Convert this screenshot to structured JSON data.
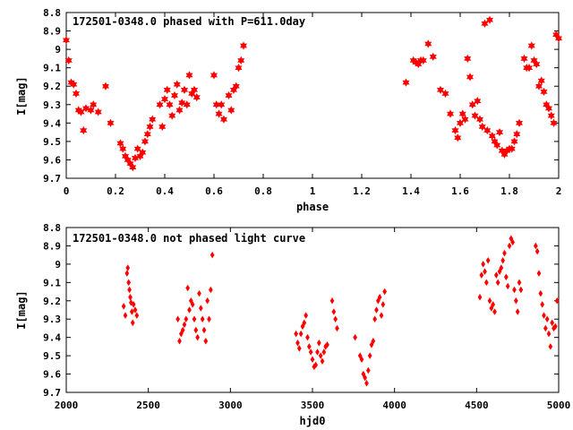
{
  "chart_data": [
    {
      "type": "scatter",
      "title": "172501-0348.0 phased with P=611.0day",
      "xlabel": "phase",
      "ylabel": "I[mag]",
      "xlim": [
        0,
        2
      ],
      "ylim": [
        9.7,
        8.8
      ],
      "y_inverted": true,
      "xticks": [
        "0",
        "0.2",
        "0.4",
        "0.6",
        "0.8",
        "1",
        "1.2",
        "1.4",
        "1.6",
        "1.8",
        "2"
      ],
      "yticks": [
        "8.8",
        "8.9",
        "9",
        "9.1",
        "9.2",
        "9.3",
        "9.4",
        "9.5",
        "9.6",
        "9.7"
      ],
      "marker": "star",
      "color": "#ff0000",
      "series": [
        {
          "x": [
            0.0,
            0.01,
            0.02,
            0.03,
            0.04,
            0.05,
            0.06,
            0.07,
            0.08,
            0.1,
            0.11,
            0.13,
            0.16,
            0.18,
            0.22,
            0.23,
            0.24,
            0.25,
            0.26,
            0.27,
            0.28,
            0.29,
            0.3,
            0.31,
            0.32,
            0.33,
            0.34,
            0.35,
            0.38,
            0.39,
            0.4,
            0.41,
            0.42,
            0.43,
            0.44,
            0.45,
            0.46,
            0.47,
            0.48,
            0.49,
            0.5,
            0.51,
            0.52,
            0.53,
            0.6,
            0.61,
            0.62,
            0.63,
            0.64,
            0.66,
            0.67,
            0.68,
            0.69,
            0.7,
            0.71,
            0.72,
            1.38,
            1.41,
            1.42,
            1.43,
            1.44,
            1.45,
            1.47,
            1.49,
            1.52,
            1.54,
            1.56,
            1.58,
            1.59,
            1.6,
            1.61,
            1.62,
            1.63,
            1.64,
            1.65,
            1.66,
            1.67,
            1.68,
            1.69,
            1.7,
            1.71,
            1.72,
            1.73,
            1.74,
            1.75,
            1.76,
            1.77,
            1.78,
            1.79,
            1.8,
            1.81,
            1.82,
            1.83,
            1.84,
            1.86,
            1.87,
            1.88,
            1.89,
            1.9,
            1.91,
            1.92,
            1.93,
            1.94,
            1.95,
            1.96,
            1.97,
            1.98,
            1.99,
            2.0
          ],
          "y": [
            8.95,
            9.06,
            9.18,
            9.19,
            9.24,
            9.33,
            9.34,
            9.44,
            9.32,
            9.33,
            9.3,
            9.34,
            9.2,
            9.4,
            9.51,
            9.54,
            9.58,
            9.6,
            9.62,
            9.64,
            9.59,
            9.54,
            9.58,
            9.56,
            9.5,
            9.46,
            9.42,
            9.38,
            9.3,
            9.42,
            9.27,
            9.22,
            9.3,
            9.36,
            9.25,
            9.19,
            9.33,
            9.29,
            9.22,
            9.3,
            9.14,
            9.24,
            9.22,
            9.26,
            9.14,
            9.3,
            9.35,
            9.3,
            9.38,
            9.25,
            9.33,
            9.22,
            9.2,
            9.1,
            9.06,
            8.98,
            9.18,
            9.06,
            9.07,
            9.08,
            9.06,
            9.06,
            8.97,
            9.04,
            9.22,
            9.24,
            9.35,
            9.44,
            9.48,
            9.4,
            9.35,
            9.38,
            9.05,
            9.15,
            9.3,
            9.36,
            9.28,
            9.38,
            9.42,
            8.86,
            9.44,
            8.84,
            9.47,
            9.5,
            9.52,
            9.45,
            9.55,
            9.57,
            9.55,
            9.54,
            9.54,
            9.5,
            9.46,
            9.4,
            9.05,
            9.1,
            9.1,
            8.98,
            9.06,
            9.08,
            9.2,
            9.17,
            9.23,
            9.3,
            9.32,
            9.36,
            9.4,
            8.92,
            8.94
          ]
        }
      ]
    },
    {
      "type": "scatter",
      "title": "172501-0348.0 not phased light curve",
      "xlabel": "hjd0",
      "ylabel": "I[mag]",
      "xlim": [
        2000,
        5000
      ],
      "ylim": [
        9.7,
        8.8
      ],
      "y_inverted": true,
      "xticks": [
        "2000",
        "2500",
        "3000",
        "3500",
        "4000",
        "4500",
        "5000"
      ],
      "yticks": [
        "8.8",
        "8.9",
        "9",
        "9.1",
        "9.2",
        "9.3",
        "9.4",
        "9.5",
        "9.6",
        "9.7"
      ],
      "marker": "diamond",
      "color": "#ff0000",
      "series": [
        {
          "x": [
            2350,
            2360,
            2370,
            2375,
            2380,
            2385,
            2390,
            2395,
            2400,
            2405,
            2410,
            2420,
            2430,
            2680,
            2690,
            2700,
            2710,
            2720,
            2730,
            2740,
            2750,
            2760,
            2770,
            2780,
            2790,
            2800,
            2810,
            2820,
            2830,
            2840,
            2850,
            2860,
            2870,
            2880,
            2890,
            3400,
            3410,
            3420,
            3430,
            3440,
            3450,
            3460,
            3470,
            3480,
            3490,
            3500,
            3510,
            3520,
            3530,
            3540,
            3550,
            3560,
            3570,
            3580,
            3590,
            3620,
            3630,
            3640,
            3650,
            3760,
            3790,
            3800,
            3810,
            3820,
            3830,
            3840,
            3850,
            3860,
            3870,
            3880,
            3890,
            3900,
            3910,
            3920,
            3930,
            3940,
            4520,
            4530,
            4540,
            4550,
            4560,
            4570,
            4580,
            4590,
            4600,
            4610,
            4620,
            4630,
            4640,
            4650,
            4660,
            4670,
            4680,
            4690,
            4700,
            4710,
            4720,
            4730,
            4740,
            4750,
            4760,
            4770,
            4860,
            4870,
            4880,
            4890,
            4900,
            4910,
            4920,
            4930,
            4940,
            4950,
            4960,
            4970,
            4980,
            4990
          ],
          "y": [
            9.23,
            9.28,
            9.05,
            9.02,
            9.1,
            9.14,
            9.18,
            9.21,
            9.26,
            9.32,
            9.22,
            9.25,
            9.28,
            9.3,
            9.42,
            9.38,
            9.36,
            9.33,
            9.3,
            9.13,
            9.25,
            9.2,
            9.22,
            9.3,
            9.36,
            9.4,
            9.16,
            9.24,
            9.3,
            9.36,
            9.42,
            9.2,
            9.3,
            9.14,
            8.95,
            9.38,
            9.43,
            9.46,
            9.38,
            9.34,
            9.32,
            9.28,
            9.4,
            9.45,
            9.48,
            9.52,
            9.56,
            9.55,
            9.48,
            9.43,
            9.5,
            9.53,
            9.48,
            9.45,
            9.44,
            9.2,
            9.26,
            9.3,
            9.35,
            9.4,
            9.5,
            9.52,
            9.6,
            9.62,
            9.65,
            9.58,
            9.5,
            9.44,
            9.42,
            9.3,
            9.25,
            9.2,
            9.18,
            9.28,
            9.22,
            9.15,
            9.18,
            9.06,
            9.0,
            9.04,
            9.1,
            8.98,
            9.2,
            9.24,
            9.22,
            9.26,
            9.06,
            9.1,
            9.04,
            9.02,
            8.98,
            8.94,
            9.07,
            9.12,
            8.9,
            8.86,
            8.88,
            9.14,
            9.2,
            9.26,
            9.1,
            9.14,
            8.9,
            8.93,
            9.05,
            9.16,
            9.22,
            9.28,
            9.35,
            9.3,
            9.38,
            9.45,
            9.32,
            9.35,
            9.34,
            9.2
          ]
        }
      ]
    }
  ]
}
